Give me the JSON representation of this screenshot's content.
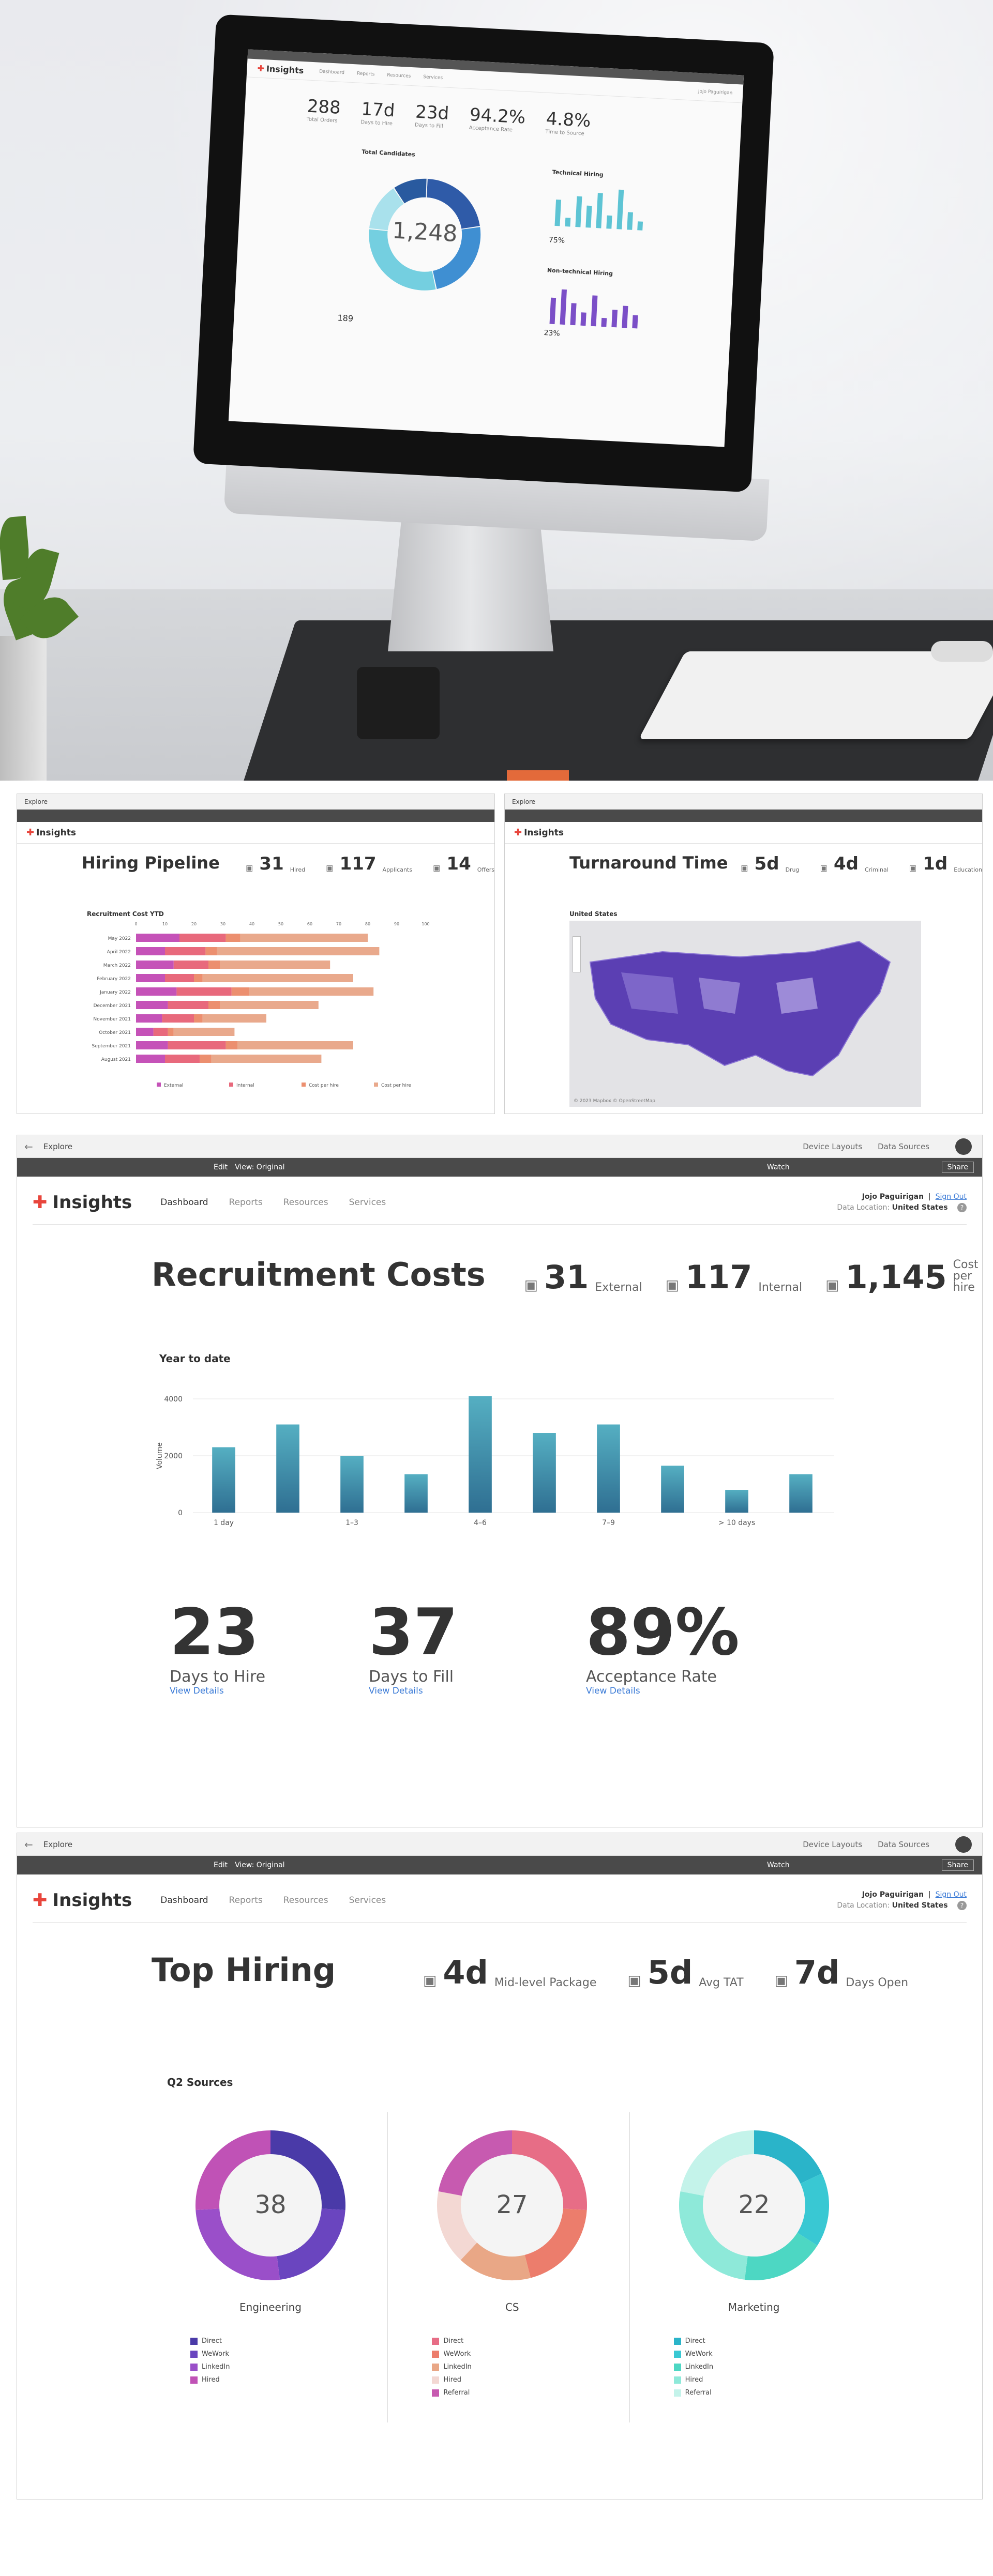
{
  "hero": {
    "screen": {
      "app": "Insights",
      "nav": [
        "Dashboard",
        "Reports",
        "Resources",
        "Services"
      ],
      "user": "Jojo Paguirigan",
      "stats": [
        {
          "value": "288",
          "label": "Total Orders"
        },
        {
          "value": "17d",
          "label": "Days to Hire"
        },
        {
          "value": "23d",
          "label": "Days to Fill"
        },
        {
          "value": "94.2%",
          "label": "Acceptance Rate"
        },
        {
          "value": "4.8%",
          "label": "Time to Source"
        }
      ],
      "donut_title": "Total Candidates",
      "donut_center": "1,248",
      "donut_slices": [
        {
          "pct": "22%",
          "color": "#2f5ba8"
        },
        {
          "pct": "24%",
          "color": "#3f8fd2"
        },
        {
          "pct": "30%",
          "color": "#74cfe0"
        },
        {
          "pct": "14%",
          "color": "#a9e1ec"
        },
        {
          "pct": "10%",
          "color": "#295a9f"
        }
      ],
      "donut_footer": "189",
      "tech_title": "Technical Hiring",
      "tech_pct": "75%",
      "tech_values": [
        0.6,
        0.2,
        0.7,
        0.5,
        0.8,
        0.3,
        0.9,
        0.4,
        0.2
      ],
      "nontech_title": "Non-technical Hiring",
      "nontech_pct": "23%",
      "nontech_values": [
        0.6,
        0.8,
        0.5,
        0.3,
        0.7,
        0.2,
        0.4,
        0.5,
        0.3
      ]
    }
  },
  "panel_left": {
    "chrome": "Explore",
    "title": "Hiring Pipeline",
    "kpis": [
      {
        "value": "31",
        "label": "Hired"
      },
      {
        "value": "117",
        "label": "Applicants"
      },
      {
        "value": "14",
        "label": "Offers"
      }
    ],
    "chart_title": "Recruitment Cost YTD",
    "legend": [
      "External",
      "Internal",
      "Cost per hire",
      "Cost per hire"
    ],
    "colors": [
      "#c552b8",
      "#e8697c",
      "#ec8f6f",
      "#e9a98c"
    ]
  },
  "panel_right": {
    "chrome": "Explore",
    "title": "Turnaround Time",
    "kpis": [
      {
        "value": "5d",
        "label": "Drug"
      },
      {
        "value": "4d",
        "label": "Criminal"
      },
      {
        "value": "1d",
        "label": "Education"
      }
    ],
    "map_title": "United States",
    "map_footer": "© 2023 Mapbox © OpenStreetMap"
  },
  "panel3": {
    "chrome": {
      "back": "Explore",
      "device": "Device Layouts",
      "sources": "Data Sources"
    },
    "toolbar": {
      "edit": "Edit",
      "view": "View: Original",
      "watch": "Watch",
      "share": "Share"
    },
    "header": {
      "logo": "Insights",
      "nav": [
        "Dashboard",
        "Reports",
        "Resources",
        "Services"
      ],
      "user": "Jojo Paguirigan",
      "signout": "Sign Out",
      "location_label": "Data Location:",
      "location": "United States"
    },
    "title": "Recruitment Costs",
    "kpis": [
      {
        "value": "31",
        "label": "External"
      },
      {
        "value": "117",
        "label": "Internal"
      },
      {
        "value": "1,145",
        "label": "Cost per hire"
      }
    ],
    "chart_heading": "Year to date",
    "ylabel": "Volume",
    "stats": [
      {
        "value": "23",
        "label": "Days to Hire",
        "link": "View Details"
      },
      {
        "value": "37",
        "label": "Days to Fill",
        "link": "View Details"
      },
      {
        "value": "89%",
        "label": "Acceptance Rate",
        "link": "View Details"
      }
    ]
  },
  "panel4": {
    "chrome": {
      "back": "Explore",
      "device": "Device Layouts",
      "sources": "Data Sources"
    },
    "toolbar": {
      "edit": "Edit",
      "view": "View: Original",
      "watch": "Watch",
      "share": "Share"
    },
    "header": {
      "logo": "Insights",
      "nav": [
        "Dashboard",
        "Reports",
        "Resources",
        "Services"
      ],
      "user": "Jojo Paguirigan",
      "signout": "Sign Out",
      "location_label": "Data Location:",
      "location": "United States"
    },
    "title": "Top Hiring",
    "kpis": [
      {
        "value": "4d",
        "label": "Mid-level Package"
      },
      {
        "value": "5d",
        "label": "Avg TAT"
      },
      {
        "value": "7d",
        "label": "Days Open"
      }
    ],
    "section": "Q2 Sources",
    "donuts": [
      {
        "name": "Engineering",
        "center": "38",
        "legend": [
          "Direct",
          "WeWork",
          "LinkedIn",
          "Hired"
        ],
        "colors": [
          "#4a3aa8",
          "#6a45bf",
          "#9a4fc9",
          "#c052b6"
        ],
        "values": [
          26,
          22,
          26,
          26
        ]
      },
      {
        "name": "CS",
        "center": "27",
        "legend": [
          "Direct",
          "WeWork",
          "LinkedIn",
          "Hired",
          "Referral"
        ],
        "colors": [
          "#e76d86",
          "#ec7d6c",
          "#e9a786",
          "#f3d8d3",
          "#c75ab0"
        ],
        "values": [
          26,
          20,
          16,
          16,
          22
        ]
      },
      {
        "name": "Marketing",
        "center": "22",
        "legend": [
          "Direct",
          "WeWork",
          "LinkedIn",
          "Hired",
          "Referral"
        ],
        "colors": [
          "#2ab4c9",
          "#39c8d3",
          "#4dd7c3",
          "#8ee9d9",
          "#c4f3ea"
        ],
        "values": [
          18,
          16,
          18,
          26,
          22
        ]
      }
    ]
  },
  "chart_data": [
    {
      "type": "bar",
      "title": "Year to date",
      "ylabel": "Volume",
      "xlabel": "",
      "categories": [
        "1 day",
        "",
        "1–3",
        "",
        "4–6",
        "",
        "7–9",
        "",
        "> 10 days",
        ""
      ],
      "values": [
        2300,
        3100,
        2000,
        1350,
        4100,
        2800,
        3100,
        1650,
        800,
        1350
      ],
      "ylim": [
        0,
        4000
      ],
      "yticks": [
        "0",
        "2000",
        "4000"
      ]
    },
    {
      "type": "bar",
      "title": "Recruitment Cost YTD",
      "stacked": true,
      "orientation": "horizontal",
      "categories": [
        "May 2022",
        "April 2022",
        "March 2022",
        "February 2022",
        "January 2022",
        "December 2021",
        "November 2021",
        "October 2021",
        "September 2021",
        "August 2021"
      ],
      "series": [
        {
          "name": "External",
          "values": [
            15,
            10,
            13,
            10,
            14,
            11,
            9,
            6,
            11,
            10
          ]
        },
        {
          "name": "Internal",
          "values": [
            16,
            14,
            12,
            10,
            19,
            14,
            11,
            5,
            20,
            12
          ]
        },
        {
          "name": "Cost per hire",
          "values": [
            5,
            4,
            4,
            3,
            6,
            4,
            3,
            2,
            4,
            4
          ]
        },
        {
          "name": "Cost per hire",
          "values": [
            44,
            56,
            38,
            52,
            43,
            34,
            22,
            21,
            40,
            38
          ]
        }
      ],
      "xlim": [
        0,
        100
      ]
    }
  ]
}
